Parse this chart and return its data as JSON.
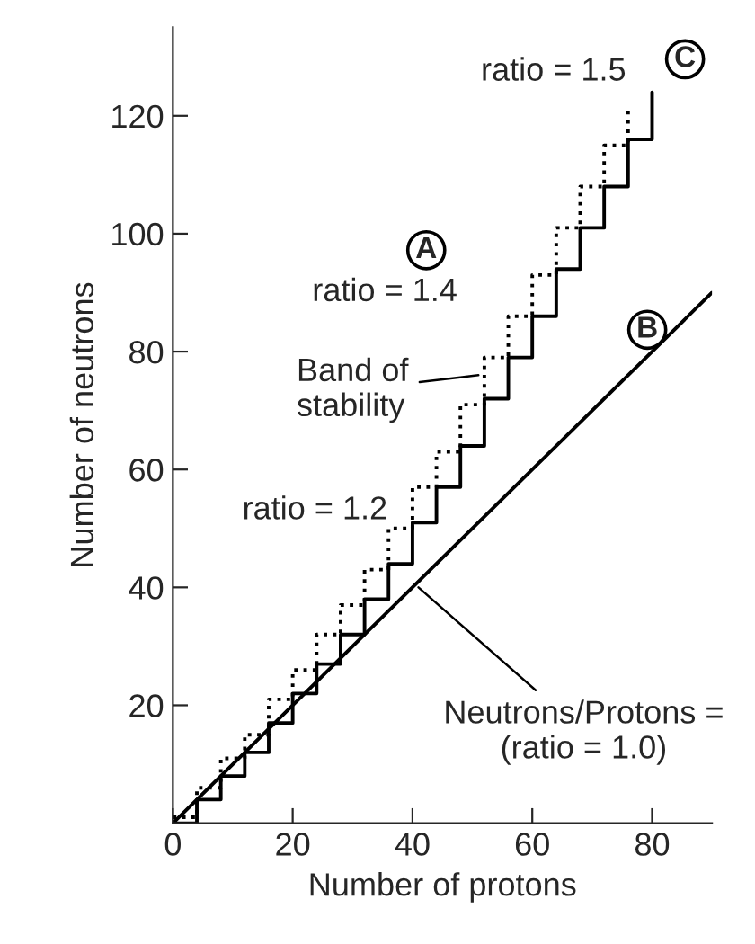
{
  "chart_data": {
    "type": "step",
    "xlabel": "Number of protons",
    "ylabel": "Number of neutrons",
    "xlim": [
      0,
      90
    ],
    "ylim": [
      0,
      135
    ],
    "xticks": [
      0,
      20,
      40,
      60,
      80
    ],
    "yticks": [
      20,
      40,
      60,
      80,
      100,
      120
    ],
    "grid": false,
    "legend": false,
    "series": [
      {
        "type": "line",
        "color": "#000000",
        "line_style": "solid",
        "x": [
          0,
          90
        ],
        "values": [
          0,
          90
        ]
      },
      {
        "color": "#000000",
        "line_style": "solid",
        "x": [
          0,
          4,
          8,
          12,
          16,
          20,
          24,
          28,
          32,
          36,
          40,
          44,
          48,
          52,
          56,
          60,
          64,
          68,
          72,
          76,
          80
        ],
        "values": [
          0,
          4,
          8,
          12,
          17,
          22,
          27,
          32,
          38,
          44,
          51,
          57,
          64,
          72,
          79,
          86,
          94,
          101,
          108,
          116,
          124
        ]
      },
      {
        "color": "#000000",
        "line_style": "dotted",
        "x": [
          0,
          4,
          8,
          12,
          16,
          20,
          24,
          28,
          32,
          36,
          40,
          44,
          48,
          52,
          56,
          60,
          64,
          68,
          72,
          76
        ],
        "values": [
          1,
          6,
          11,
          15,
          21,
          26,
          32,
          37,
          43,
          50,
          57,
          63,
          71,
          79,
          86,
          93,
          101,
          108,
          115,
          121
        ]
      }
    ],
    "annotations": [
      {
        "text": "ratio = 1.5",
        "x": 79,
        "y": 124
      },
      {
        "text": "ratio = 1.4",
        "x": 60,
        "y": 90
      },
      {
        "text": "ratio = 1.2",
        "x": 40,
        "y": 53
      },
      {
        "text": "Band of stability",
        "x": 51,
        "y": 76
      },
      {
        "text": "Neutrons/Protons = (ratio = 1.0)",
        "x": 41,
        "y": 40
      },
      "C",
      "A",
      "B"
    ]
  }
}
